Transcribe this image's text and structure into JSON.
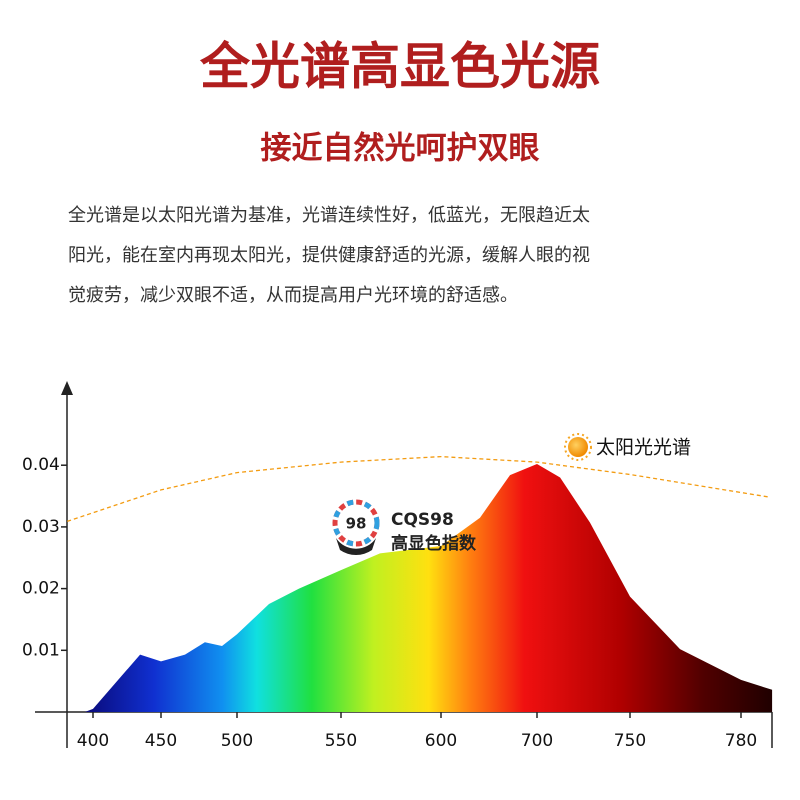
{
  "header": {
    "title": "全光谱高显色光源",
    "subtitle": "接近自然光呵护双眼",
    "paragraph": [
      "全光谱是以太阳光谱为基准，光谱连续性好，低蓝光，无限趋近太",
      "阳光，能在室内再现太阳光，提供健康舒适的光源，缓解人眼的视",
      "觉疲劳，减少双眼不适，从而提高用户光环境的舒适感。"
    ]
  },
  "badge": {
    "score": "98",
    "name": "CQS98",
    "label": "高显色指数"
  },
  "chart_data": {
    "type": "area",
    "xlim": [
      381,
      788
    ],
    "xticks": [
      400,
      450,
      500,
      550,
      600,
      700,
      750,
      780
    ],
    "ylim": [
      0,
      0.053
    ],
    "yticks": [
      0.01,
      0.02,
      0.03,
      0.04
    ],
    "series": [
      {
        "x": [
          394,
          400,
          434.6,
          450,
          465.8,
          478.9,
          490.1,
          500,
          515.4,
          529.8,
          550,
          569.5,
          600,
          640.6,
          671.9,
          700,
          712.4,
          728.5,
          750,
          763.5,
          780,
          788.4
        ],
        "values": [
          0,
          0.0005,
          0.0093,
          0.0082,
          0.0093,
          0.0113,
          0.0107,
          0.0126,
          0.0175,
          0.02,
          0.023,
          0.0257,
          0.0269,
          0.0315,
          0.0384,
          0.0402,
          0.038,
          0.0307,
          0.0187,
          0.0102,
          0.0052,
          0.0036
        ]
      },
      {
        "name": "太阳光光谱",
        "color": "#f39c12",
        "dashed": true,
        "x": [
          381,
          450,
          500,
          550,
          600,
          700,
          750,
          788
        ],
        "values": [
          0.0309,
          0.036,
          0.0388,
          0.0405,
          0.0414,
          0.0405,
          0.0385,
          0.0348
        ]
      }
    ]
  }
}
